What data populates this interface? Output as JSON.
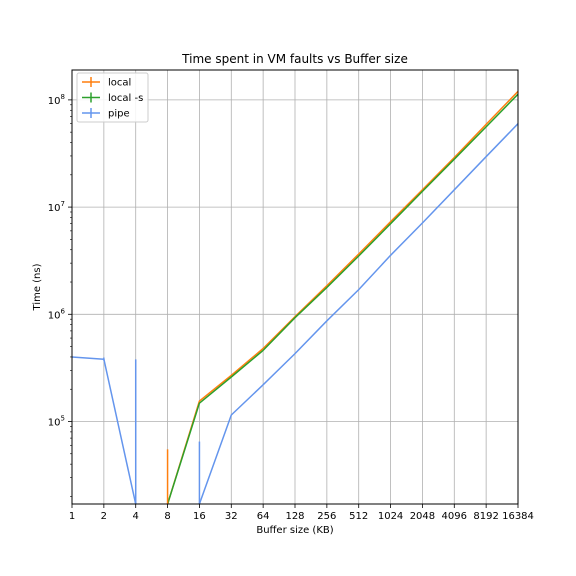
{
  "chart_data": {
    "type": "line",
    "title": "Time spent in VM faults vs Buffer size",
    "xlabel": "Buffer size (KB)",
    "ylabel": "Time (ns)",
    "x_scale": "log2",
    "y_scale": "log10",
    "xlim": [
      1,
      16384
    ],
    "ylim": [
      17000,
      190000000
    ],
    "x": [
      1,
      2,
      4,
      8,
      16,
      32,
      64,
      128,
      256,
      512,
      1024,
      2048,
      4096,
      8192,
      16384
    ],
    "x_tick_labels": [
      "1",
      "2",
      "4",
      "8",
      "16",
      "32",
      "64",
      "128",
      "256",
      "512",
      "1024",
      "2048",
      "4096",
      "8192",
      "16384"
    ],
    "y_ticks": [
      {
        "value": 100000,
        "base": "10",
        "exp": "5"
      },
      {
        "value": 1000000,
        "base": "10",
        "exp": "6"
      },
      {
        "value": 10000000,
        "base": "10",
        "exp": "7"
      },
      {
        "value": 100000000,
        "base": "10",
        "exp": "8"
      }
    ],
    "grid": true,
    "legend_position": "top-left",
    "series": [
      {
        "name": "local",
        "color": "#ff7f0e",
        "values": [
          null,
          null,
          null,
          0,
          155000,
          270000,
          480000,
          950000,
          1850000,
          3650000,
          7300000,
          14500000,
          29000000,
          59000000,
          120000000
        ]
      },
      {
        "name": "local -s",
        "color": "#2ca02c",
        "values": [
          null,
          null,
          null,
          0,
          148000,
          260000,
          460000,
          930000,
          1780000,
          3500000,
          7000000,
          14000000,
          28000000,
          56000000,
          113000000
        ]
      },
      {
        "name": "pipe",
        "color": "#6495ed",
        "values": [
          400000,
          380000,
          0,
          null,
          0,
          115000,
          220000,
          430000,
          870000,
          1700000,
          3550000,
          7100000,
          14500000,
          29500000,
          60000000
        ]
      }
    ],
    "error_bars": [
      {
        "series": "pipe",
        "x": 2,
        "low": 370000,
        "high": 395000
      },
      {
        "series": "pipe",
        "x": 4,
        "low": 0,
        "high": 380000
      },
      {
        "series": "local",
        "x": 8,
        "low": 0,
        "high": 55000
      },
      {
        "series": "pipe",
        "x": 16,
        "low": 0,
        "high": 65000
      }
    ]
  }
}
